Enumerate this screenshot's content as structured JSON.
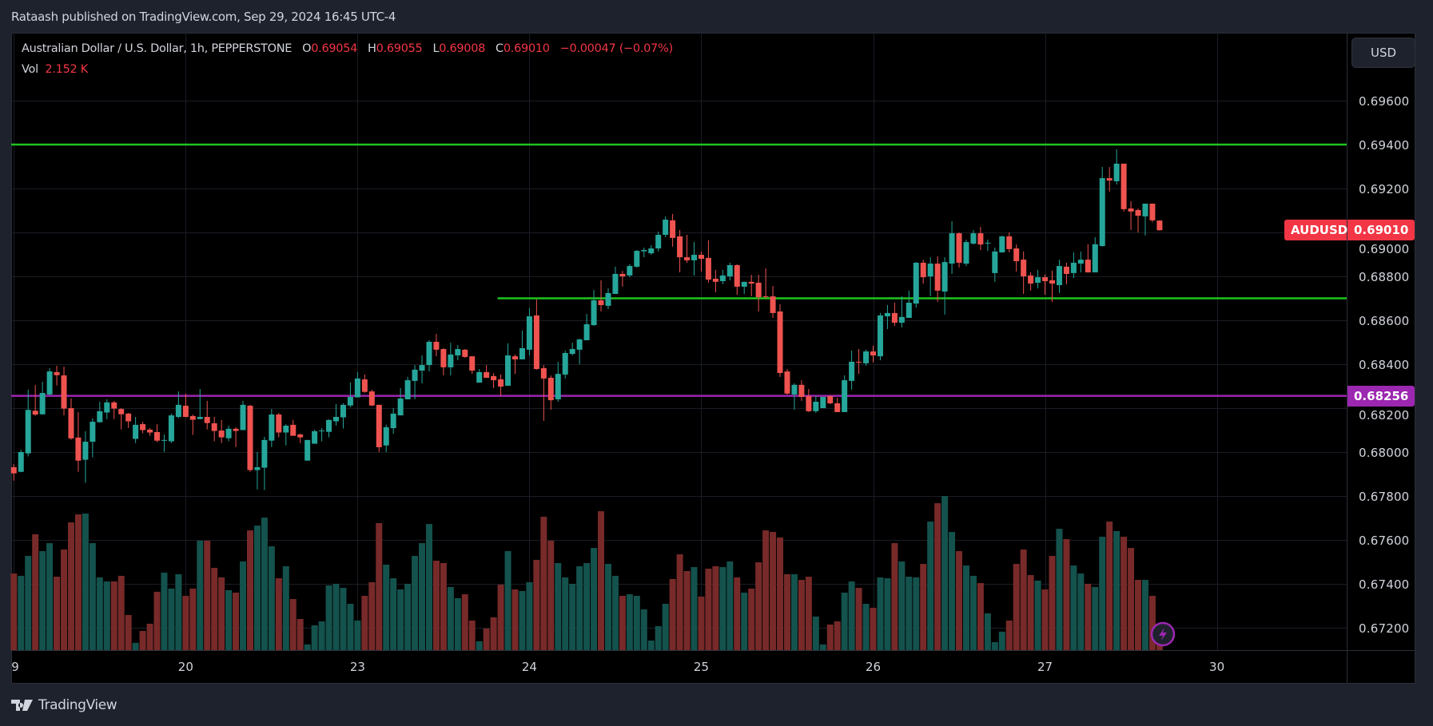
{
  "published": "Rataash published on TradingView.com, Sep 29, 2024 16:45 UTC-4",
  "legend": {
    "symbol": "Australian Dollar / U.S. Dollar, 1h, PEPPERSTONE",
    "o_key": "O",
    "o": "0.69054",
    "h_key": "H",
    "h": "0.69055",
    "l_key": "L",
    "l": "0.69008",
    "c_key": "C",
    "c": "0.69010",
    "change": "−0.00047 (−0.07%)",
    "vol_key": "Vol",
    "vol": "2.152 K"
  },
  "currency_button": "USD",
  "footer_logo": "TradingView",
  "colors": {
    "up": "#26a69a",
    "down": "#ef5350",
    "vol_up": "#14524d",
    "vol_down": "#772a29",
    "level_green": "#1fc41f",
    "level_purple": "#9c27b0"
  },
  "chart_data": {
    "type": "candlestick",
    "symbol": "AUDUSD",
    "last_price_label": "0.69010",
    "price_ticks": [
      "0.69600",
      "0.69400",
      "0.69200",
      "0.69000",
      "0.68800",
      "0.68600",
      "0.68400",
      "0.68200",
      "0.68000",
      "0.67800",
      "0.67600",
      "0.67400",
      "0.67200"
    ],
    "time_labels": [
      {
        "text": "9",
        "bar": 0
      },
      {
        "text": "20",
        "bar": 24
      },
      {
        "text": "23",
        "bar": 48
      },
      {
        "text": "24",
        "bar": 72
      },
      {
        "text": "25",
        "bar": 96
      },
      {
        "text": "26",
        "bar": 120
      },
      {
        "text": "27",
        "bar": 144
      },
      {
        "text": "30",
        "bar": 168
      }
    ],
    "horizontal_lines": [
      {
        "price": 0.694,
        "color": "#1fc41f",
        "from_bar": 0
      },
      {
        "price": 0.687,
        "color": "#1fc41f",
        "from_bar": 68
      },
      {
        "price": 0.68256,
        "color": "#9c27b0",
        "from_bar": 0,
        "label": "0.68256"
      }
    ],
    "ohlc": [
      [
        0.67931,
        0.67946,
        0.6787,
        0.67903
      ],
      [
        0.6791,
        0.6801,
        0.67908,
        0.68
      ],
      [
        0.67994,
        0.68284,
        0.6798,
        0.68192
      ],
      [
        0.68188,
        0.68306,
        0.68165,
        0.68171
      ],
      [
        0.68172,
        0.6832,
        0.6817,
        0.68269
      ],
      [
        0.68262,
        0.68382,
        0.68258,
        0.68367
      ],
      [
        0.68364,
        0.68393,
        0.68303,
        0.6835
      ],
      [
        0.68349,
        0.68389,
        0.68167,
        0.68198
      ],
      [
        0.682,
        0.68244,
        0.68056,
        0.68062
      ],
      [
        0.68066,
        0.68182,
        0.6791,
        0.67961
      ],
      [
        0.67965,
        0.68095,
        0.6786,
        0.68047
      ],
      [
        0.68047,
        0.68153,
        0.67976,
        0.68138
      ],
      [
        0.68136,
        0.68229,
        0.68134,
        0.68186
      ],
      [
        0.6818,
        0.6824,
        0.6815,
        0.68226
      ],
      [
        0.68226,
        0.68233,
        0.6815,
        0.68198
      ],
      [
        0.68196,
        0.682,
        0.68103,
        0.68172
      ],
      [
        0.68175,
        0.68178,
        0.6811,
        0.6814
      ],
      [
        0.6806,
        0.6816,
        0.68041,
        0.68124
      ],
      [
        0.68127,
        0.68138,
        0.68085,
        0.681
      ],
      [
        0.68102,
        0.68109,
        0.68074,
        0.68089
      ],
      [
        0.68091,
        0.68127,
        0.68045,
        0.68052
      ],
      [
        0.68052,
        0.6808,
        0.68001,
        0.68055
      ],
      [
        0.68049,
        0.68175,
        0.68041,
        0.68167
      ],
      [
        0.6816,
        0.68276,
        0.68154,
        0.68215
      ],
      [
        0.68211,
        0.68266,
        0.68158,
        0.6816
      ],
      [
        0.68164,
        0.68171,
        0.68078,
        0.68147
      ],
      [
        0.6815,
        0.68287,
        0.6815,
        0.6816
      ],
      [
        0.6816,
        0.68233,
        0.68103,
        0.68132
      ],
      [
        0.68131,
        0.6816,
        0.68049,
        0.68096
      ],
      [
        0.68098,
        0.68146,
        0.68041,
        0.68067
      ],
      [
        0.68063,
        0.6812,
        0.68049,
        0.68106
      ],
      [
        0.68106,
        0.68113,
        0.68023,
        0.68096
      ],
      [
        0.681,
        0.68233,
        0.681,
        0.68215
      ],
      [
        0.68211,
        0.68215,
        0.6791,
        0.67918
      ],
      [
        0.67918,
        0.68,
        0.6783,
        0.67931
      ],
      [
        0.67929,
        0.68069,
        0.67827,
        0.68055
      ],
      [
        0.68052,
        0.68196,
        0.68023,
        0.68171
      ],
      [
        0.68171,
        0.68178,
        0.68067,
        0.68089
      ],
      [
        0.68089,
        0.68127,
        0.6803,
        0.6812
      ],
      [
        0.68124,
        0.68146,
        0.68074,
        0.68074
      ],
      [
        0.6808,
        0.68084,
        0.68041,
        0.68067
      ],
      [
        0.67961,
        0.68055,
        0.67961,
        0.68055
      ],
      [
        0.68038,
        0.68102,
        0.68038,
        0.68095
      ],
      [
        0.68096,
        0.68109,
        0.68049,
        0.68098
      ],
      [
        0.68092,
        0.68149,
        0.68067,
        0.68146
      ],
      [
        0.6814,
        0.68218,
        0.68121,
        0.6816
      ],
      [
        0.68158,
        0.68222,
        0.68107,
        0.68215
      ],
      [
        0.68212,
        0.68317,
        0.68205,
        0.68251
      ],
      [
        0.68249,
        0.68364,
        0.68249,
        0.68335
      ],
      [
        0.68331,
        0.68353,
        0.6827,
        0.68274
      ],
      [
        0.68276,
        0.68284,
        0.68209,
        0.68212
      ],
      [
        0.68215,
        0.68215,
        0.68,
        0.68022
      ],
      [
        0.6803,
        0.68125,
        0.68,
        0.68113
      ],
      [
        0.68109,
        0.682,
        0.68083,
        0.68175
      ],
      [
        0.68167,
        0.68291,
        0.68167,
        0.68244
      ],
      [
        0.6824,
        0.68342,
        0.6824,
        0.68327
      ],
      [
        0.68324,
        0.68396,
        0.6824,
        0.68375
      ],
      [
        0.68371,
        0.6844,
        0.68313,
        0.68396
      ],
      [
        0.68396,
        0.68509,
        0.68367,
        0.68502
      ],
      [
        0.68502,
        0.68538,
        0.68436,
        0.68466
      ],
      [
        0.68469,
        0.68473,
        0.68349,
        0.68386
      ],
      [
        0.68386,
        0.68498,
        0.68349,
        0.68444
      ],
      [
        0.6844,
        0.68487,
        0.68418,
        0.68469
      ],
      [
        0.68466,
        0.68469,
        0.68429,
        0.68433
      ],
      [
        0.68436,
        0.68436,
        0.68356,
        0.68371
      ],
      [
        0.68316,
        0.68378,
        0.68316,
        0.68364
      ],
      [
        0.68364,
        0.68396,
        0.68338,
        0.68338
      ],
      [
        0.68346,
        0.6836,
        0.68291,
        0.68327
      ],
      [
        0.68331,
        0.68353,
        0.68255,
        0.68298
      ],
      [
        0.68302,
        0.68495,
        0.68302,
        0.6844
      ],
      [
        0.68436,
        0.68444,
        0.68356,
        0.68422
      ],
      [
        0.68422,
        0.68553,
        0.68422,
        0.68473
      ],
      [
        0.68466,
        0.68655,
        0.6844,
        0.68618
      ],
      [
        0.68622,
        0.68695,
        0.68375,
        0.68378
      ],
      [
        0.68382,
        0.68396,
        0.68142,
        0.68335
      ],
      [
        0.68338,
        0.68349,
        0.68193,
        0.68236
      ],
      [
        0.6824,
        0.68411,
        0.68229,
        0.68356
      ],
      [
        0.68353,
        0.68462,
        0.68335,
        0.68451
      ],
      [
        0.68447,
        0.68498,
        0.6844,
        0.68469
      ],
      [
        0.68466,
        0.68516,
        0.684,
        0.68513
      ],
      [
        0.68509,
        0.68629,
        0.68509,
        0.68582
      ],
      [
        0.68578,
        0.68738,
        0.68574,
        0.68691
      ],
      [
        0.68691,
        0.68782,
        0.6864,
        0.68669
      ],
      [
        0.68666,
        0.68746,
        0.68651,
        0.68724
      ],
      [
        0.6872,
        0.68844,
        0.6872,
        0.68811
      ],
      [
        0.68811,
        0.68825,
        0.68753,
        0.688
      ],
      [
        0.68804,
        0.68855,
        0.68796,
        0.68847
      ],
      [
        0.68844,
        0.6892,
        0.6884,
        0.68916
      ],
      [
        0.68914,
        0.68931,
        0.68887,
        0.6892
      ],
      [
        0.68905,
        0.68942,
        0.68898,
        0.68927
      ],
      [
        0.68927,
        0.69004,
        0.68913,
        0.68989
      ],
      [
        0.68989,
        0.69073,
        0.68978,
        0.69058
      ],
      [
        0.69055,
        0.69084,
        0.68935,
        0.68975
      ],
      [
        0.68982,
        0.69011,
        0.68818,
        0.68887
      ],
      [
        0.68887,
        0.68989,
        0.68862,
        0.68873
      ],
      [
        0.68873,
        0.68956,
        0.68804,
        0.68898
      ],
      [
        0.68898,
        0.68913,
        0.68822,
        0.6888
      ],
      [
        0.68884,
        0.68964,
        0.68771,
        0.68785
      ],
      [
        0.68789,
        0.68829,
        0.68727,
        0.68775
      ],
      [
        0.68778,
        0.68829,
        0.68764,
        0.68804
      ],
      [
        0.688,
        0.68862,
        0.68782,
        0.68851
      ],
      [
        0.68851,
        0.68855,
        0.68716,
        0.68753
      ],
      [
        0.68753,
        0.68775,
        0.6872,
        0.68775
      ],
      [
        0.68775,
        0.68807,
        0.68709,
        0.68767
      ],
      [
        0.68771,
        0.68807,
        0.6864,
        0.68705
      ],
      [
        0.68709,
        0.68836,
        0.68698,
        0.68707
      ],
      [
        0.68709,
        0.68756,
        0.68611,
        0.68633
      ],
      [
        0.6864,
        0.68673,
        0.68342,
        0.6836
      ],
      [
        0.68367,
        0.68378,
        0.68262,
        0.68266
      ],
      [
        0.68262,
        0.68313,
        0.68193,
        0.68306
      ],
      [
        0.68306,
        0.68327,
        0.68233,
        0.68251
      ],
      [
        0.68255,
        0.68287,
        0.68182,
        0.68186
      ],
      [
        0.68186,
        0.68255,
        0.68178,
        0.68229
      ],
      [
        0.682,
        0.68251,
        0.682,
        0.68251
      ],
      [
        0.68255,
        0.68258,
        0.68218,
        0.68222
      ],
      [
        0.68222,
        0.68247,
        0.68182,
        0.68182
      ],
      [
        0.68182,
        0.68349,
        0.68182,
        0.68327
      ],
      [
        0.68324,
        0.68462,
        0.68284,
        0.68411
      ],
      [
        0.68411,
        0.68469,
        0.68356,
        0.68409
      ],
      [
        0.68404,
        0.68466,
        0.68393,
        0.68458
      ],
      [
        0.68458,
        0.68484,
        0.68408,
        0.6844
      ],
      [
        0.68436,
        0.68633,
        0.68418,
        0.68622
      ],
      [
        0.68618,
        0.68669,
        0.6856,
        0.68633
      ],
      [
        0.68633,
        0.6868,
        0.68574,
        0.68589
      ],
      [
        0.68589,
        0.68709,
        0.68567,
        0.68615
      ],
      [
        0.68611,
        0.68735,
        0.68611,
        0.6868
      ],
      [
        0.68676,
        0.68865,
        0.68658,
        0.68862
      ],
      [
        0.68862,
        0.68876,
        0.68767,
        0.68796
      ],
      [
        0.688,
        0.68887,
        0.68709,
        0.68858
      ],
      [
        0.68858,
        0.68891,
        0.68684,
        0.68735
      ],
      [
        0.68731,
        0.68887,
        0.68626,
        0.68865
      ],
      [
        0.68858,
        0.69051,
        0.68811,
        0.68996
      ],
      [
        0.68996,
        0.69,
        0.6884,
        0.68862
      ],
      [
        0.68858,
        0.68967,
        0.68847,
        0.68956
      ],
      [
        0.68949,
        0.69011,
        0.68945,
        0.68996
      ],
      [
        0.68996,
        0.69025,
        0.6892,
        0.68945
      ],
      [
        0.6895,
        0.68967,
        0.68916,
        0.68953
      ],
      [
        0.68815,
        0.68931,
        0.68775,
        0.68913
      ],
      [
        0.68909,
        0.68985,
        0.68909,
        0.68982
      ],
      [
        0.68982,
        0.69,
        0.68909,
        0.68924
      ],
      [
        0.68927,
        0.68945,
        0.68822,
        0.68869
      ],
      [
        0.68876,
        0.68913,
        0.6872,
        0.688
      ],
      [
        0.68804,
        0.68818,
        0.68735,
        0.68767
      ],
      [
        0.68771,
        0.68829,
        0.68745,
        0.68796
      ],
      [
        0.68796,
        0.68809,
        0.68716,
        0.68778
      ],
      [
        0.68782,
        0.68826,
        0.68684,
        0.68767
      ],
      [
        0.6876,
        0.68876,
        0.68724,
        0.68847
      ],
      [
        0.68844,
        0.68862,
        0.68764,
        0.68811
      ],
      [
        0.68815,
        0.68909,
        0.68793,
        0.68862
      ],
      [
        0.68858,
        0.68913,
        0.68818,
        0.68876
      ],
      [
        0.68876,
        0.68946,
        0.68818,
        0.68818
      ],
      [
        0.68818,
        0.68978,
        0.68818,
        0.68946
      ],
      [
        0.68938,
        0.69298,
        0.68935,
        0.69247
      ],
      [
        0.69247,
        0.69298,
        0.69186,
        0.69236
      ],
      [
        0.69233,
        0.69378,
        0.69218,
        0.69313
      ],
      [
        0.69313,
        0.69313,
        0.69095,
        0.69106
      ],
      [
        0.69109,
        0.69142,
        0.69011,
        0.69095
      ],
      [
        0.69102,
        0.69109,
        0.69,
        0.69076
      ],
      [
        0.69073,
        0.69131,
        0.68986,
        0.69131
      ],
      [
        0.69131,
        0.69131,
        0.69047,
        0.69055
      ],
      [
        0.69054,
        0.69055,
        0.69008,
        0.6901
      ]
    ],
    "volume_k": [
      6.24,
      6.05,
      7.67,
      9.43,
      8.06,
      8.71,
      5.98,
      8.19,
      10.4,
      11.05,
      11.12,
      8.71,
      5.92,
      5.59,
      5.59,
      6.05,
      2.86,
      0.59,
      1.56,
      2.15,
      4.75,
      6.31,
      5.01,
      6.18,
      4.42,
      5.01,
      8.91,
      8.91,
      6.7,
      5.92,
      4.88,
      4.68,
      7.22,
      9.75,
      10.14,
      10.79,
      8.45,
      5.85,
      6.83,
      4.16,
      2.54,
      0.46,
      2.02,
      2.34,
      5.27,
      5.4,
      5.07,
      3.77,
      2.41,
      4.42,
      5.53,
      10.34,
      6.96,
      5.85,
      4.94,
      5.4,
      7.67,
      8.71,
      10.27,
      7.28,
      7.09,
      5.14,
      4.23,
      4.55,
      2.41,
      0.72,
      1.76,
      2.67,
      5.33,
      8.06,
      4.94,
      4.81,
      5.53,
      7.35,
      10.86,
      8.91,
      7.09,
      5.92,
      5.4,
      6.83,
      7.09,
      8.32,
      11.31,
      7.02,
      6.05,
      4.42,
      4.55,
      4.42,
      3.32,
      0.78,
      1.95,
      3.77,
      5.79,
      7.8,
      6.44,
      6.76,
      4.36,
      6.63,
      6.83,
      6.76,
      7.22,
      5.92,
      4.68,
      5.01,
      7.15,
      9.75,
      9.62,
      9.17,
      6.18,
      6.18,
      5.72,
      5.98,
      2.73,
      0.46,
      2.08,
      2.34,
      4.68,
      5.59,
      5.07,
      3.77,
      3.45,
      5.92,
      5.85,
      8.71,
      7.22,
      5.98,
      5.92,
      7.02,
      10.47,
      11.96,
      12.55,
      9.62,
      8.06,
      6.89,
      6.05,
      5.46,
      2.99,
      0.65,
      1.5,
      2.41,
      7.02,
      8.19,
      6.11,
      5.66,
      4.94,
      7.67,
      9.88,
      9.04,
      6.89,
      6.24,
      5.4,
      5.14,
      9.23,
      10.47,
      9.69,
      9.23,
      8.32,
      5.72,
      5.72,
      4.42,
      2.152
    ]
  }
}
